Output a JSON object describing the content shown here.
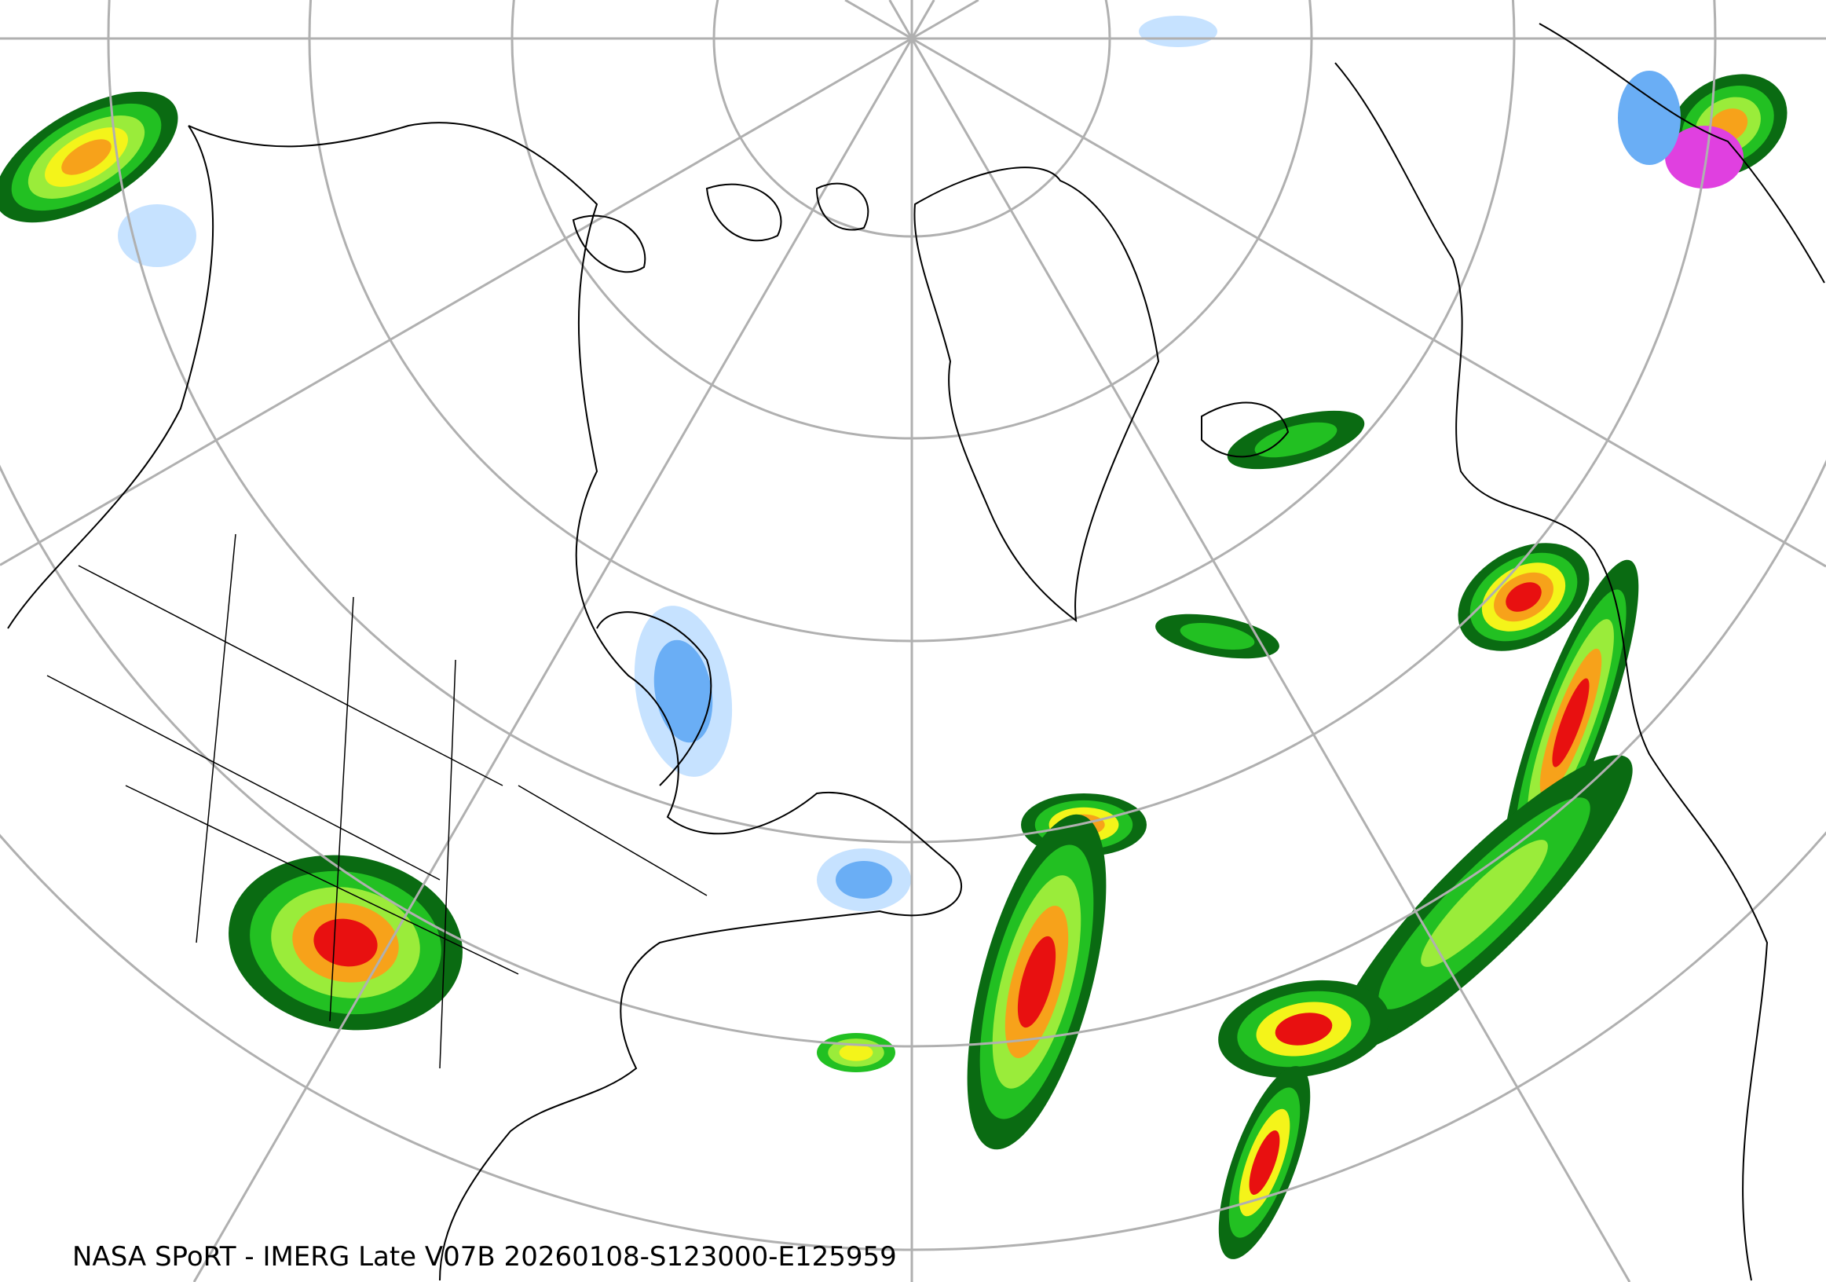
{
  "caption": "NASA SPoRT - IMERG Late V07B 20260108-S123000-E125959",
  "map": {
    "projection": "polar stereographic",
    "graticule_color": "#b0b0b0",
    "coastline_color": "#000000",
    "precip_colors": {
      "light_blue": "#c6e2ff",
      "blue": "#6aaef5",
      "dark_blue": "#1f6fe0",
      "dark_green": "#0a6b12",
      "green": "#22c022",
      "light_green": "#9aec3a",
      "yellow": "#f4f41a",
      "orange": "#f7a21a",
      "red": "#e81010",
      "magenta": "#e040e0"
    }
  }
}
